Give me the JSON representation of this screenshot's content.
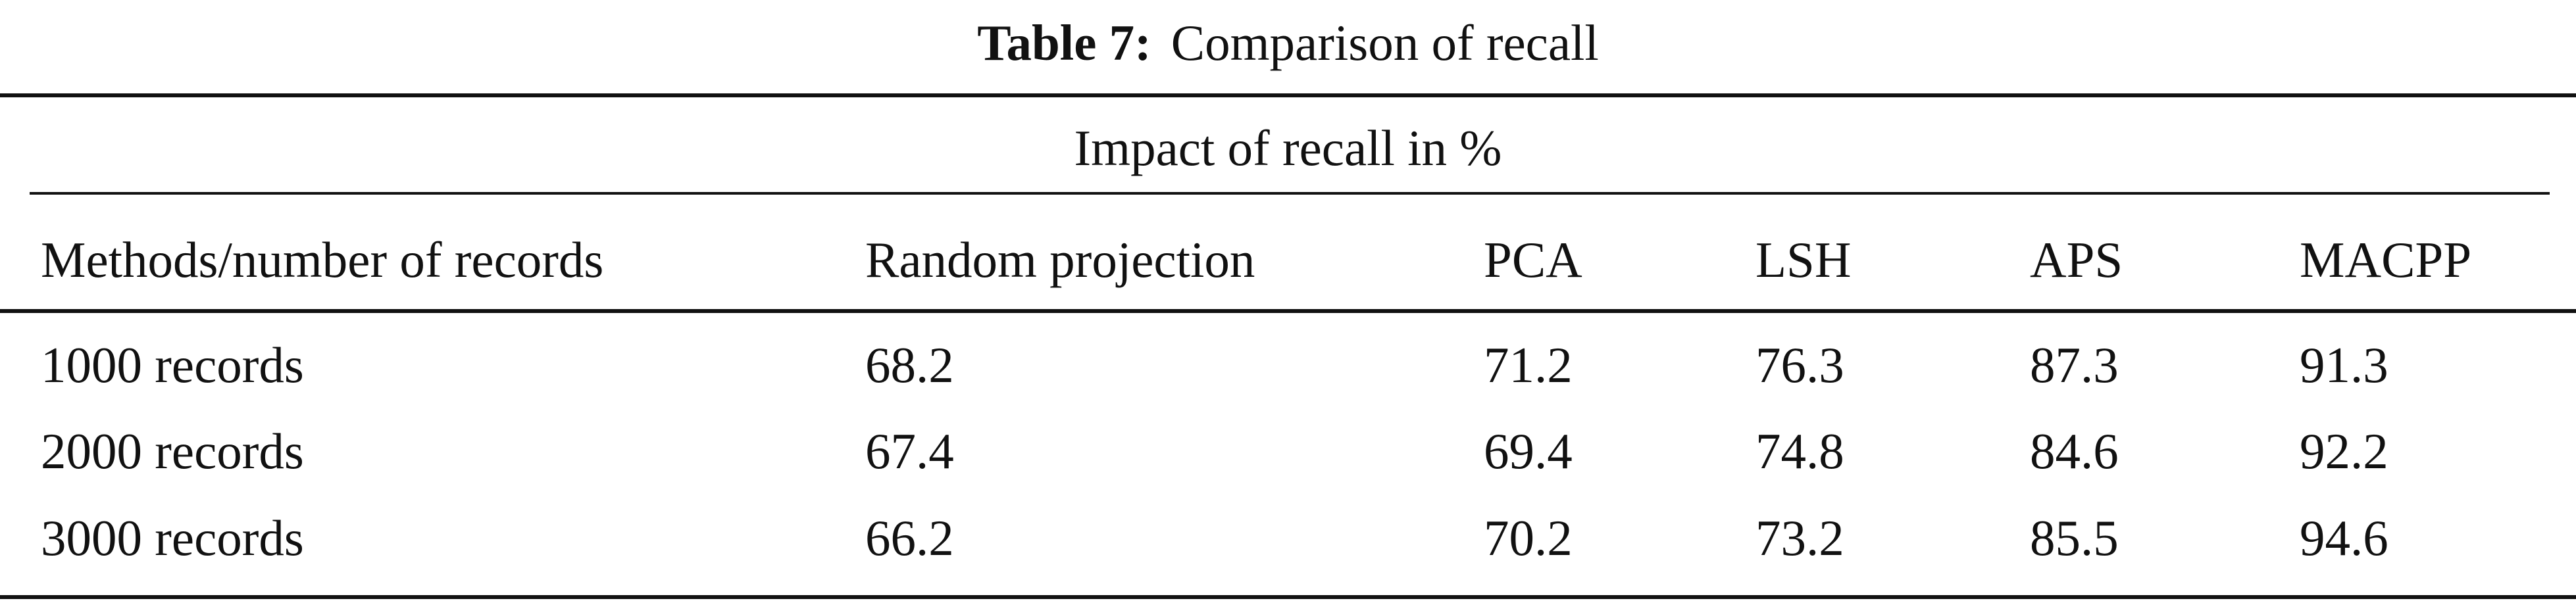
{
  "caption": {
    "label": "Table 7:",
    "text": "Comparison of recall"
  },
  "table": {
    "group_header": "Impact of recall in %",
    "columns": [
      "Methods/number of records",
      "Random projection",
      "PCA",
      "LSH",
      "APS",
      "MACPP"
    ],
    "rows": [
      [
        "1000 records",
        "68.2",
        "71.2",
        "76.3",
        "87.3",
        "91.3"
      ],
      [
        "2000 records",
        "67.4",
        "69.4",
        "74.8",
        "84.6",
        "92.2"
      ],
      [
        "3000 records",
        "66.2",
        "70.2",
        "73.2",
        "85.5",
        "94.6"
      ]
    ]
  }
}
